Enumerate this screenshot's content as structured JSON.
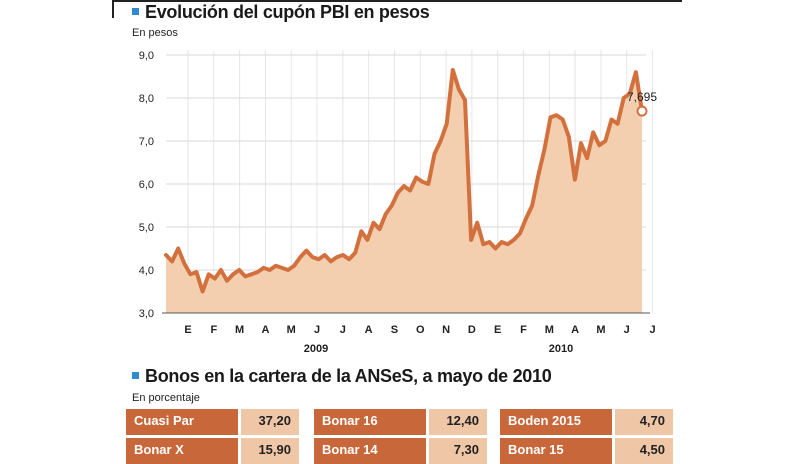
{
  "chart_title": "Evolución del cupón PBI en pesos",
  "chart_unit": "En pesos",
  "chart_data": {
    "type": "area",
    "title": "Evolución del cupón PBI en pesos",
    "ylabel": "En pesos",
    "ylim": [
      3.0,
      9.0
    ],
    "y_ticks": [
      "3,0",
      "4,0",
      "5,0",
      "6,0",
      "7,0",
      "8,0",
      "9,0"
    ],
    "month_labels": [
      "E",
      "F",
      "M",
      "A",
      "M",
      "J",
      "J",
      "A",
      "S",
      "O",
      "N",
      "D",
      "E",
      "F",
      "M",
      "A",
      "M",
      "J",
      "J"
    ],
    "year_labels": [
      "2009",
      "2010"
    ],
    "annotation": "7,695",
    "line_color": "#d2713e",
    "fill_color": "#f4cfaf",
    "series": [
      {
        "values": [
          4.35,
          4.2,
          4.5,
          4.15,
          3.9,
          3.95,
          3.5,
          3.9,
          3.8,
          4.0,
          3.75,
          3.9,
          4.0,
          3.85,
          3.9,
          3.95,
          4.05,
          4.0,
          4.1,
          4.05,
          4.0,
          4.1,
          4.3,
          4.45,
          4.3,
          4.25,
          4.35,
          4.2,
          4.3,
          4.35,
          4.25,
          4.4,
          4.9,
          4.7,
          5.1,
          4.95,
          5.3,
          5.5,
          5.8,
          5.95,
          5.85,
          6.15,
          6.05,
          6.0,
          6.7,
          7.0,
          7.4,
          8.65,
          8.2,
          7.95,
          4.7,
          5.1,
          4.6,
          4.65,
          4.5,
          4.65,
          4.6,
          4.7,
          4.85,
          5.2,
          5.5,
          6.2,
          6.8,
          7.55,
          7.6,
          7.5,
          7.1,
          6.1,
          6.95,
          6.6,
          7.2,
          6.9,
          7.0,
          7.5,
          7.4,
          8.0,
          8.1,
          8.6,
          7.695
        ]
      }
    ]
  },
  "table_title": "Bonos en la cartera de la ANSeS, a mayo de 2010",
  "table_unit": "En porcentaje",
  "table": {
    "rows": [
      [
        {
          "name": "Cuasi Par",
          "value": "37,20"
        },
        {
          "name": "Bonar 16",
          "value": "12,40"
        },
        {
          "name": "Boden 2015",
          "value": "4,70"
        }
      ],
      [
        {
          "name": "Bonar X",
          "value": "15,90"
        },
        {
          "name": "Bonar 14",
          "value": "7,30"
        },
        {
          "name": "Bonar 15",
          "value": "4,50"
        }
      ]
    ]
  }
}
